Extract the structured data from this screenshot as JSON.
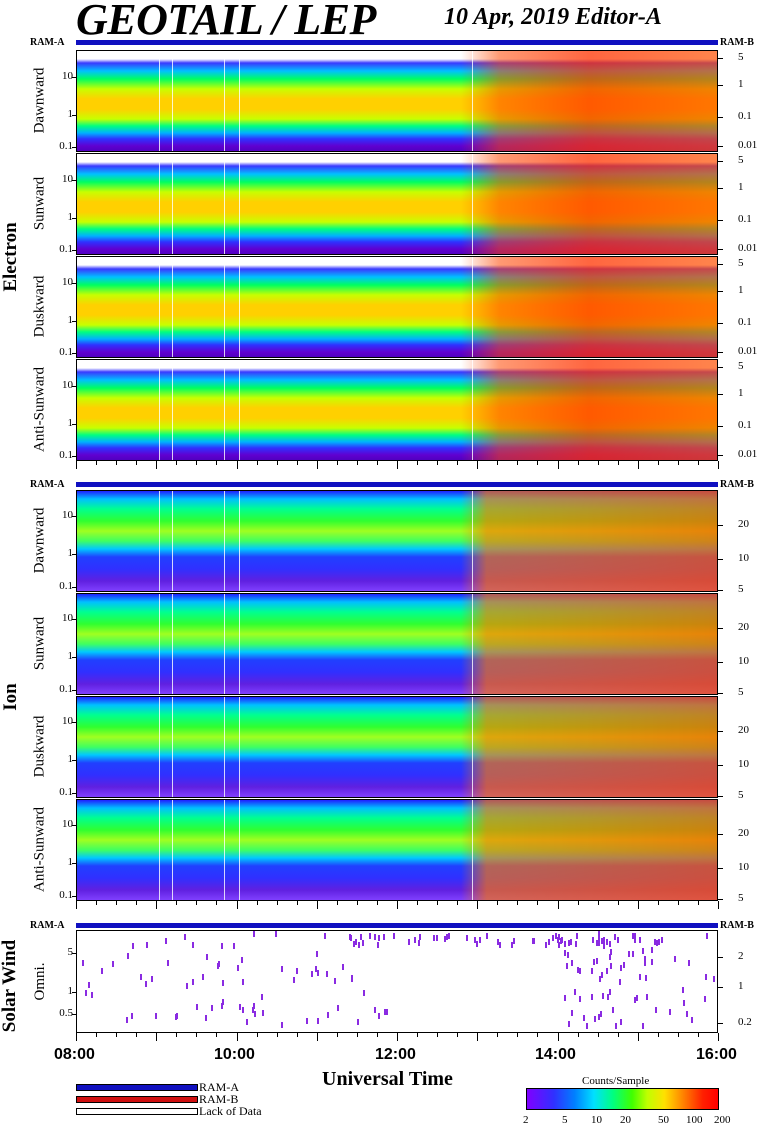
{
  "header": {
    "title": "GEOTAIL / LEP",
    "date_editor": "10 Apr, 2019   Editor-A"
  },
  "ram": {
    "a": "RAM-A",
    "b": "RAM-B"
  },
  "groups": {
    "electron": "Electron",
    "ion": "Ion",
    "solar_wind": "Solar Wind"
  },
  "electron_panels": [
    {
      "label": "Dawnward"
    },
    {
      "label": "Sunward"
    },
    {
      "label": "Duskward"
    },
    {
      "label": "Anti-Sunward"
    }
  ],
  "ion_panels": [
    {
      "label": "Dawnward"
    },
    {
      "label": "Sunward"
    },
    {
      "label": "Duskward"
    },
    {
      "label": "Anti-Sunward"
    }
  ],
  "solar_wind_panel": {
    "label": "Omni."
  },
  "electron_left_ticks": [
    "10",
    "1",
    "0.1"
  ],
  "electron_right_ticks": [
    "5",
    "1",
    "0.1",
    "0.01"
  ],
  "ion_left_ticks": [
    "10",
    "1",
    "0.1"
  ],
  "ion_right_ticks": [
    "20",
    "10",
    "5"
  ],
  "sw_left_ticks": [
    "5",
    "1",
    "0.5"
  ],
  "sw_right_ticks": [
    "2",
    "1",
    "0.2"
  ],
  "x_ticks": [
    "08:00",
    "10:00",
    "12:00",
    "14:00",
    "16:00"
  ],
  "x_label": "Universal Time",
  "legend": {
    "ram_a": "RAM-A",
    "ram_b": "RAM-B",
    "lack": "Lack of Data",
    "colors": {
      "ram_a": "#1010c0",
      "ram_b": "#d01010",
      "lack": "#ffffff"
    }
  },
  "colorbar": {
    "title": "Counts/Sample",
    "ticks": [
      "2",
      "5",
      "10",
      "20",
      "50",
      "100",
      "200"
    ]
  },
  "chart_data": {
    "type": "heatmap",
    "title": "GEOTAIL / LEP",
    "date": "10 Apr, 2019",
    "xlabel": "Universal Time",
    "x_range": [
      "08:00",
      "16:00"
    ],
    "color_scale": {
      "label": "Counts/Sample",
      "range": [
        2,
        200
      ],
      "scale": "log"
    },
    "groups": [
      {
        "name": "Electron",
        "panels": [
          "Dawnward",
          "Sunward",
          "Duskward",
          "Anti-Sunward"
        ],
        "left_axis": {
          "scale": "log",
          "range": [
            0.1,
            30
          ]
        },
        "right_axis": {
          "scale": "log",
          "range": [
            0.01,
            5
          ]
        }
      },
      {
        "name": "Ion",
        "panels": [
          "Dawnward",
          "Sunward",
          "Duskward",
          "Anti-Sunward"
        ],
        "left_axis": {
          "scale": "log",
          "range": [
            0.1,
            30
          ]
        },
        "right_axis": {
          "scale": "log",
          "range": [
            5,
            30
          ]
        }
      },
      {
        "name": "Solar Wind",
        "panels": [
          "Omni."
        ],
        "left_axis": {
          "scale": "log",
          "range": [
            0.3,
            7
          ]
        },
        "right_axis": {
          "scale": "log",
          "range": [
            0.2,
            2
          ]
        }
      }
    ]
  }
}
